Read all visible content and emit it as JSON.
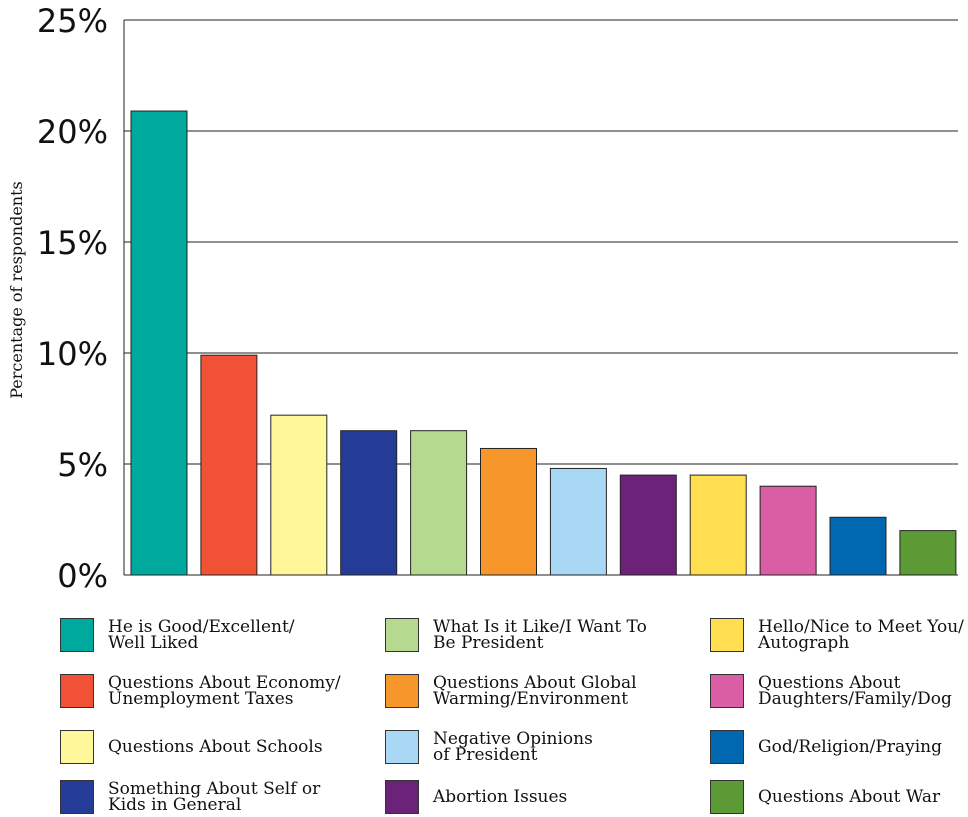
{
  "chart_data": {
    "type": "bar",
    "title": "",
    "xlabel": "",
    "ylabel": "Percentage of respondents",
    "ylim": [
      0,
      25
    ],
    "yticks": [
      0,
      5,
      10,
      15,
      20,
      25
    ],
    "ytick_labels": [
      "0%",
      "5%",
      "10%",
      "15%",
      "20%",
      "25%"
    ],
    "grid": "horizontal",
    "categories": [
      "He is Good/Excellent/\nWell Liked",
      "Questions About Economy/\nUnemployment Taxes",
      "Questions About Schools",
      "Something About Self or\nKids in General",
      "What Is it Like/I Want To\nBe President",
      "Questions About Global\nWarming/Environment",
      "Negative Opinions\nof President",
      "Abortion Issues",
      "Hello/Nice to Meet You/\nAutograph",
      "Questions About\nDaughters/Family/Dog",
      "God/Religion/Praying",
      "Questions About War"
    ],
    "values": [
      20.9,
      9.9,
      7.2,
      6.5,
      6.5,
      5.7,
      4.8,
      4.5,
      4.5,
      4.0,
      2.6,
      2.0
    ],
    "colors": [
      "#00a99d",
      "#f15236",
      "#fff799",
      "#253c97",
      "#b5d98e",
      "#f7962b",
      "#a8d8f4",
      "#6d227a",
      "#ffdf4f",
      "#d95ea4",
      "#0067b1",
      "#5b9a35"
    ],
    "legend_position": "bottom"
  }
}
